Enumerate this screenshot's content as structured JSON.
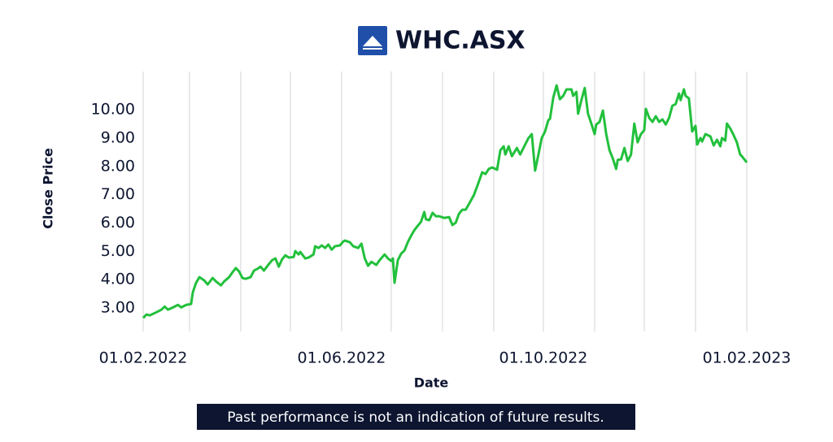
{
  "chart_data": {
    "type": "line",
    "title": "WHC.ASX",
    "xlabel": "Date",
    "ylabel": "Close Price",
    "disclaimer": "Past performance is not an indication of future results.",
    "color": "#22c03c",
    "grid": true,
    "xlim": [
      "01.02.2022",
      "01.02.2023"
    ],
    "xticks": [
      "01.02.2022",
      "01.06.2022",
      "01.10.2022",
      "01.02.2023"
    ],
    "xminor": [
      "01.02.2022",
      "01.03.2022",
      "01.04.2022",
      "01.05.2022",
      "01.06.2022",
      "01.07.2022",
      "01.08.2022",
      "01.09.2022",
      "01.10.2022",
      "01.11.2022",
      "01.12.2022",
      "01.01.2023",
      "01.02.2023"
    ],
    "ylim": [
      2.17,
      11.35
    ],
    "yticks": [
      {
        "value": 3,
        "label": "3.00"
      },
      {
        "value": 4,
        "label": "4.00"
      },
      {
        "value": 5,
        "label": "5.00"
      },
      {
        "value": 6,
        "label": "6.00"
      },
      {
        "value": 7,
        "label": "7.00"
      },
      {
        "value": 8,
        "label": "8.00"
      },
      {
        "value": 9,
        "label": "9.00"
      },
      {
        "value": 10,
        "label": "10.00"
      }
    ],
    "x": [
      "01.02.2022",
      "03.02.2022",
      "05.02.2022",
      "09.02.2022",
      "12.02.2022",
      "14.02.2022",
      "16.02.2022",
      "19.02.2022",
      "22.02.2022",
      "24.02.2022",
      "27.02.2022",
      "02.03.2022",
      "03.03.2022",
      "05.03.2022",
      "07.03.2022",
      "10.03.2022",
      "12.03.2022",
      "15.03.2022",
      "17.03.2022",
      "20.03.2022",
      "22.03.2022",
      "25.03.2022",
      "27.03.2022",
      "29.03.2022",
      "31.03.2022",
      "02.04.2022",
      "04.04.2022",
      "07.04.2022",
      "09.04.2022",
      "11.04.2022",
      "13.04.2022",
      "15.04.2022",
      "18.04.2022",
      "20.04.2022",
      "22.04.2022",
      "24.04.2022",
      "26.04.2022",
      "28.04.2022",
      "30.04.2022",
      "03.05.2022",
      "04.05.2022",
      "06.05.2022",
      "07.05.2022",
      "10.05.2022",
      "12.05.2022",
      "15.05.2022",
      "16.05.2022",
      "18.05.2022",
      "20.05.2022",
      "22.05.2022",
      "24.05.2022",
      "26.05.2022",
      "28.05.2022",
      "31.05.2022",
      "02.06.2022",
      "03.06.2022",
      "06.06.2022",
      "08.06.2022",
      "11.06.2022",
      "13.06.2022",
      "15.06.2022",
      "17.06.2022",
      "19.06.2022",
      "22.06.2022",
      "24.06.2022",
      "27.06.2022",
      "29.06.2022",
      "01.07.2022",
      "02.07.2022",
      "03.07.2022",
      "05.07.2022",
      "07.07.2022",
      "09.07.2022",
      "11.07.2022",
      "13.07.2022",
      "15.07.2022",
      "17.07.2022",
      "19.07.2022",
      "21.07.2022",
      "22.07.2022",
      "24.07.2022",
      "26.07.2022",
      "28.07.2022",
      "30.07.2022",
      "02.08.2022",
      "05.08.2022",
      "07.08.2022",
      "09.08.2022",
      "11.08.2022",
      "13.08.2022",
      "15.08.2022",
      "17.08.2022",
      "20.08.2022",
      "22.08.2022",
      "25.08.2022",
      "27.08.2022",
      "29.08.2022",
      "31.08.2022",
      "02.09.2022",
      "03.09.2022",
      "05.09.2022",
      "07.09.2022",
      "08.09.2022",
      "10.09.2022",
      "12.09.2022",
      "15.09.2022",
      "17.09.2022",
      "20.09.2022",
      "22.09.2022",
      "24.09.2022",
      "26.09.2022",
      "28.09.2022",
      "30.09.2022",
      "02.10.2022",
      "04.10.2022",
      "05.10.2022",
      "07.10.2022",
      "09.10.2022",
      "11.10.2022",
      "13.10.2022",
      "15.10.2022",
      "18.10.2022",
      "19.10.2022",
      "21.10.2022",
      "22.10.2022",
      "24.10.2022",
      "26.10.2022",
      "28.10.2022",
      "30.10.2022",
      "01.11.2022",
      "02.11.2022",
      "04.11.2022",
      "06.11.2022",
      "08.11.2022",
      "10.11.2022",
      "12.11.2022",
      "14.11.2022",
      "15.11.2022",
      "17.11.2022",
      "19.11.2022",
      "21.11.2022",
      "23.11.2022",
      "25.11.2022",
      "27.11.2022",
      "29.11.2022",
      "01.12.2022",
      "02.12.2022",
      "04.12.2022",
      "06.12.2022",
      "08.12.2022",
      "10.12.2022",
      "12.12.2022",
      "14.12.2022",
      "16.12.2022",
      "18.12.2022",
      "20.12.2022",
      "22.12.2022",
      "23.12.2022",
      "25.12.2022",
      "26.12.2022",
      "28.12.2022",
      "30.12.2022",
      "01.01.2023",
      "02.01.2023",
      "04.01.2023",
      "05.01.2023",
      "07.01.2023",
      "10.01.2023",
      "12.01.2023",
      "14.01.2023",
      "16.01.2023",
      "17.01.2023",
      "19.01.2023",
      "20.01.2023",
      "22.01.2023",
      "24.01.2023",
      "26.01.2023",
      "28.01.2023",
      "29.01.2023",
      "01.02.2023"
    ],
    "values": [
      2.65,
      2.77,
      2.74,
      2.85,
      2.94,
      3.05,
      2.94,
      3.02,
      3.11,
      3.02,
      3.11,
      3.14,
      3.55,
      3.89,
      4.09,
      3.97,
      3.83,
      4.06,
      3.94,
      3.8,
      3.94,
      4.09,
      4.26,
      4.41,
      4.29,
      4.06,
      4.03,
      4.09,
      4.32,
      4.38,
      4.46,
      4.32,
      4.55,
      4.69,
      4.75,
      4.46,
      4.72,
      4.86,
      4.78,
      4.8,
      5.01,
      4.89,
      4.98,
      4.75,
      4.78,
      4.89,
      5.18,
      5.12,
      5.21,
      5.12,
      5.24,
      5.06,
      5.18,
      5.21,
      5.35,
      5.38,
      5.32,
      5.18,
      5.12,
      5.27,
      4.75,
      4.49,
      4.63,
      4.52,
      4.69,
      4.89,
      4.75,
      4.66,
      4.75,
      3.89,
      4.69,
      4.92,
      5.03,
      5.32,
      5.55,
      5.75,
      5.9,
      6.04,
      6.39,
      6.13,
      6.1,
      6.36,
      6.24,
      6.24,
      6.18,
      6.21,
      5.93,
      6.01,
      6.33,
      6.47,
      6.47,
      6.67,
      6.99,
      7.3,
      7.79,
      7.73,
      7.91,
      7.96,
      7.91,
      7.88,
      8.57,
      8.71,
      8.42,
      8.71,
      8.36,
      8.65,
      8.42,
      8.77,
      9.0,
      9.14,
      7.85,
      8.42,
      9.0,
      9.23,
      9.63,
      9.68,
      10.43,
      10.86,
      10.37,
      10.49,
      10.72,
      10.72,
      10.49,
      10.63,
      9.86,
      10.34,
      10.77,
      9.86,
      9.51,
      9.14,
      9.48,
      9.57,
      9.97,
      9.14,
      8.57,
      8.28,
      7.91,
      8.23,
      8.25,
      8.65,
      8.19,
      8.42,
      9.51,
      8.85,
      9.14,
      9.28,
      10.03,
      9.71,
      9.57,
      9.77,
      9.57,
      9.66,
      9.48,
      9.71,
      10.14,
      10.2,
      10.57,
      10.34,
      10.72,
      10.49,
      10.4,
      9.23,
      9.43,
      8.77,
      9.0,
      8.88,
      9.14,
      9.06,
      8.74,
      8.94,
      8.71,
      9.0,
      8.91,
      9.51,
      9.34,
      9.11,
      8.85,
      8.42,
      8.36,
      8.14
    ]
  }
}
